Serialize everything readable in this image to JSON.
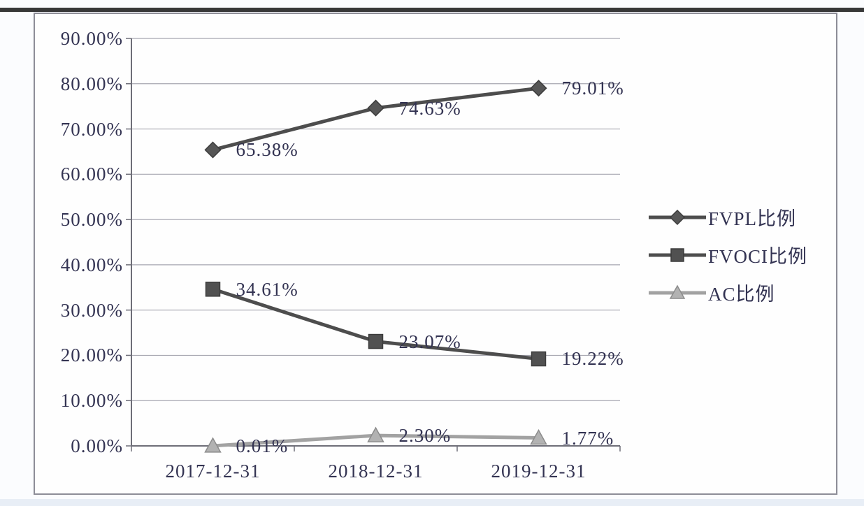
{
  "page": {
    "background_color": "#fbfcfe",
    "scan_edge_color": "#1c1c1c",
    "frame_border_color": "#8d8d97",
    "text_color": "#333352",
    "gridline_color": "#a6a6b0",
    "axis_color": "#6e6e78"
  },
  "chart_data": {
    "type": "line",
    "title": "",
    "xlabel": "",
    "ylabel": "",
    "categories": [
      "2017-12-31",
      "2018-12-31",
      "2019-12-31"
    ],
    "series": [
      {
        "name": "FVPL比例",
        "values": [
          65.38,
          74.63,
          79.01
        ],
        "labels": [
          "65.38%",
          "74.63%",
          "79.01%"
        ],
        "marker": "diamond",
        "line_color": "#4d4d4d",
        "marker_fill": "#565656",
        "marker_edge": "#3c3c3c"
      },
      {
        "name": "FVOCI比例",
        "values": [
          34.61,
          23.07,
          19.22
        ],
        "labels": [
          "34.61%",
          "23.07%",
          "19.22%"
        ],
        "marker": "square",
        "line_color": "#4d4d4d",
        "marker_fill": "#515151",
        "marker_edge": "#3c3c3c"
      },
      {
        "name": "AC比例",
        "values": [
          0.01,
          2.3,
          1.77
        ],
        "labels": [
          "0.01%",
          "2.30%",
          "1.77%"
        ],
        "marker": "triangle",
        "line_color": "#a2a2a2",
        "marker_fill": "#b2b2b2",
        "marker_edge": "#8c8c8c"
      }
    ],
    "ylim": [
      0,
      90
    ],
    "y_tick_step": 10,
    "y_tick_labels": [
      "0.00%",
      "10.00%",
      "20.00%",
      "30.00%",
      "40.00%",
      "50.00%",
      "60.00%",
      "70.00%",
      "80.00%",
      "90.00%"
    ],
    "grid": true,
    "legend_position": "right"
  }
}
